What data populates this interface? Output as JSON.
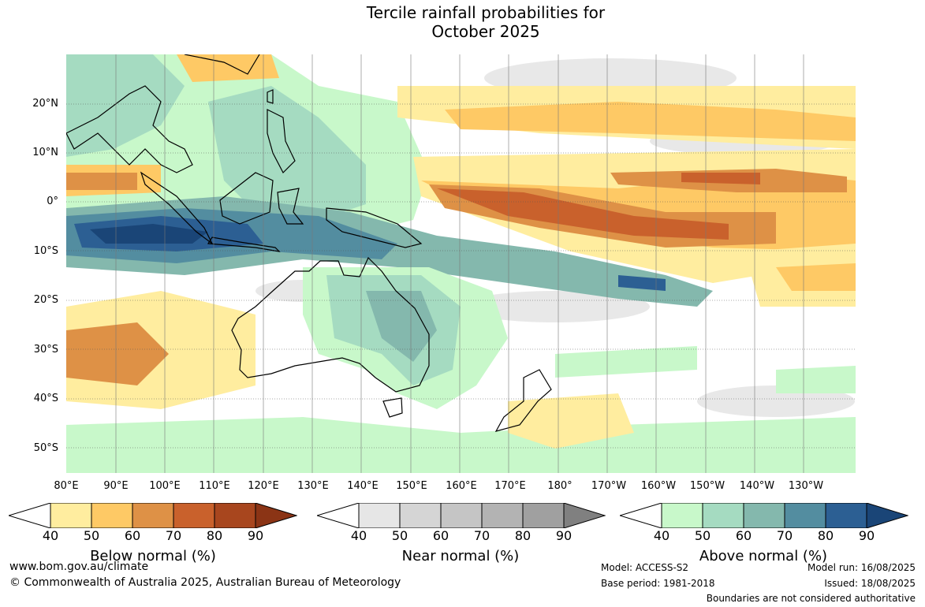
{
  "title": {
    "line1": "Tercile rainfall probabilities for",
    "line2": "October 2025"
  },
  "map": {
    "lat_labels": [
      "20°N",
      "10°N",
      "0°",
      "10°S",
      "20°S",
      "30°S",
      "40°S",
      "50°S"
    ],
    "lon_labels": [
      "80°E",
      "90°E",
      "100°E",
      "110°E",
      "120°E",
      "130°E",
      "140°E",
      "150°E",
      "160°E",
      "170°E",
      "180°",
      "170°W",
      "160°W",
      "150°W",
      "140°W",
      "130°W"
    ],
    "region": "Indian Ocean, Maritime Continent, Australia and western Pacific"
  },
  "colorbars": [
    {
      "title": "Below normal (%)",
      "ticks": [
        "40",
        "50",
        "60",
        "70",
        "80",
        "90"
      ],
      "colors": [
        "#ffffff",
        "#ffed9f",
        "#fec965",
        "#de9146",
        "#c9612c",
        "#a8461e",
        "#8b3415"
      ]
    },
    {
      "title": "Near normal (%)",
      "ticks": [
        "40",
        "50",
        "60",
        "70",
        "80",
        "90"
      ],
      "colors": [
        "#ffffff",
        "#e6e6e6",
        "#d5d5d5",
        "#c5c5c5",
        "#b3b3b3",
        "#a0a0a0",
        "#808080"
      ]
    },
    {
      "title": "Above normal (%)",
      "ticks": [
        "40",
        "50",
        "60",
        "70",
        "80",
        "90"
      ],
      "colors": [
        "#ffffff",
        "#c8f8ca",
        "#a5dbc1",
        "#84b8ad",
        "#538da0",
        "#2c5f93",
        "#1a4577"
      ]
    }
  ],
  "footer": {
    "website": "www.bom.gov.au/climate",
    "copyright": "© Commonwealth of Australia 2025, Australian Bureau of Meteorology",
    "model": "Model: ACCESS-S2",
    "base_period": "Base period: 1981-2018",
    "model_run": "Model run: 16/08/2025",
    "issued": "Issued: 18/08/2025",
    "disclaimer": "Boundaries are not considered authoritative"
  }
}
